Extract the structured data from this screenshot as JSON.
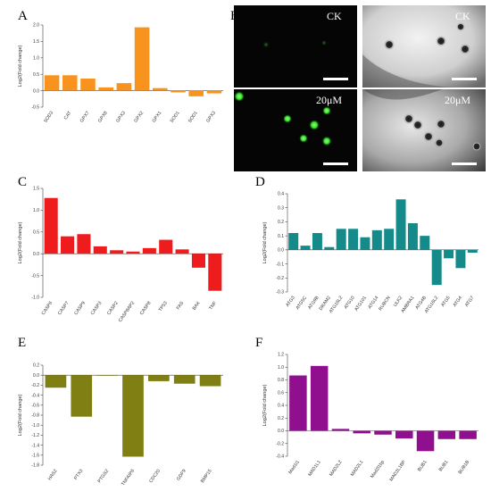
{
  "panel_letters": [
    "A",
    "B",
    "C",
    "D",
    "E",
    "F"
  ],
  "micrographs": {
    "top_left_label": "CK",
    "top_right_label": "CK",
    "bottom_left_label": "20μM",
    "bottom_right_label": "20μM"
  },
  "colors": {
    "A": "#f7931e",
    "C": "#ee1c1c",
    "D": "#148a8a",
    "E": "#7f7f13",
    "F": "#8f0f8f"
  },
  "chart_data": [
    {
      "panel": "A",
      "type": "bar",
      "ylabel": "Log2(Fold change)",
      "ylim": [
        -0.5,
        2.0
      ],
      "yticks": [
        -0.5,
        0.0,
        0.5,
        1.0,
        1.5,
        2.0
      ],
      "ytick_labels": [
        "-0.5",
        "0.0",
        "0.5",
        "1.0",
        "1.5",
        "2.0"
      ],
      "categories": [
        "SOD3",
        "CAT",
        "GPX7",
        "GPX8",
        "GPX3",
        "GPX2",
        "GPX1",
        "SOD1",
        "SOD1",
        "GPX3"
      ],
      "values": [
        0.47,
        0.47,
        0.37,
        0.1,
        0.23,
        1.93,
        0.08,
        -0.05,
        -0.17,
        -0.08
      ]
    },
    {
      "panel": "C",
      "type": "bar",
      "ylabel": "Log2(Fold change)",
      "ylim": [
        -1.0,
        1.5
      ],
      "yticks": [
        -1.0,
        -0.5,
        0.0,
        0.5,
        1.0,
        1.5
      ],
      "ytick_labels": [
        "-1.0",
        "-0.5",
        "0.0",
        "0.5",
        "1.0",
        "1.5"
      ],
      "categories": [
        "CASP6",
        "CASP7",
        "CASP9",
        "CASP3",
        "CASP2",
        "CASP8AP2",
        "CASP8",
        "TP53",
        "FAS",
        "BAX",
        "TNF"
      ],
      "values": [
        1.28,
        0.4,
        0.45,
        0.17,
        0.08,
        0.05,
        0.13,
        0.32,
        0.1,
        -0.32,
        -0.85
      ]
    },
    {
      "panel": "D",
      "type": "bar",
      "ylabel": "Log2(Fold change)",
      "ylim": [
        -0.3,
        0.4
      ],
      "yticks": [
        -0.3,
        -0.2,
        -0.1,
        0.0,
        0.1,
        0.2,
        0.3,
        0.4
      ],
      "ytick_labels": [
        "-0.3",
        "-0.2",
        "-0.1",
        "0.0",
        "0.1",
        "0.2",
        "0.3",
        "0.4"
      ],
      "categories": [
        "ATG3",
        "ATG5C",
        "ATG9B",
        "DRAM2",
        "ATG16L2",
        "ATG10",
        "ATG101",
        "ATG14",
        "RUBCN",
        "ULK2",
        "AMBRA1",
        "ATG4B",
        "ATG16L2",
        "ATG5",
        "ATG4",
        "ATG7"
      ],
      "values": [
        0.12,
        0.03,
        0.12,
        0.02,
        0.15,
        0.15,
        0.09,
        0.14,
        0.15,
        0.36,
        0.19,
        0.1,
        -0.25,
        -0.06,
        -0.13,
        -0.02
      ]
    },
    {
      "panel": "E",
      "type": "bar",
      "ylabel": "Log2(Fold change)",
      "ylim": [
        -1.8,
        0.2
      ],
      "yticks": [
        -1.8,
        -1.6,
        -1.4,
        -1.2,
        -1.0,
        -0.8,
        -0.6,
        -0.4,
        -0.2,
        0.0,
        0.2
      ],
      "ytick_labels": [
        "-1.8",
        "-1.6",
        "-1.4",
        "-1.2",
        "-1.0",
        "-0.8",
        "-0.6",
        "-0.4",
        "-0.2",
        "0.0",
        "0.2"
      ],
      "categories": [
        "HAS2",
        "PTX3",
        "PTGS2",
        "TNFAIP6",
        "CDC20",
        "GDF9",
        "BMP15"
      ],
      "values": [
        -0.25,
        -0.83,
        -0.01,
        -1.63,
        -0.12,
        -0.17,
        -0.22
      ]
    },
    {
      "panel": "F",
      "type": "bar",
      "ylabel": "Log2(Fold change)",
      "ylim": [
        -0.4,
        1.2
      ],
      "yticks": [
        -0.4,
        -0.2,
        0.0,
        0.2,
        0.4,
        0.6,
        0.8,
        1.0,
        1.2
      ],
      "ytick_labels": [
        "-0.4",
        "-0.2",
        "0.0",
        "0.2",
        "0.4",
        "0.6",
        "0.8",
        "1.0",
        "1.2"
      ],
      "categories": [
        "Mad1l1",
        "MAD1L1",
        "MAD2L2",
        "MAD2L1",
        "Mad2l1bp",
        "MAD2L1BP",
        "BUB1",
        "BUB1",
        "BUB1B"
      ],
      "values": [
        0.87,
        1.02,
        0.03,
        -0.04,
        -0.06,
        -0.12,
        -0.32,
        -0.13,
        -0.13
      ]
    }
  ]
}
